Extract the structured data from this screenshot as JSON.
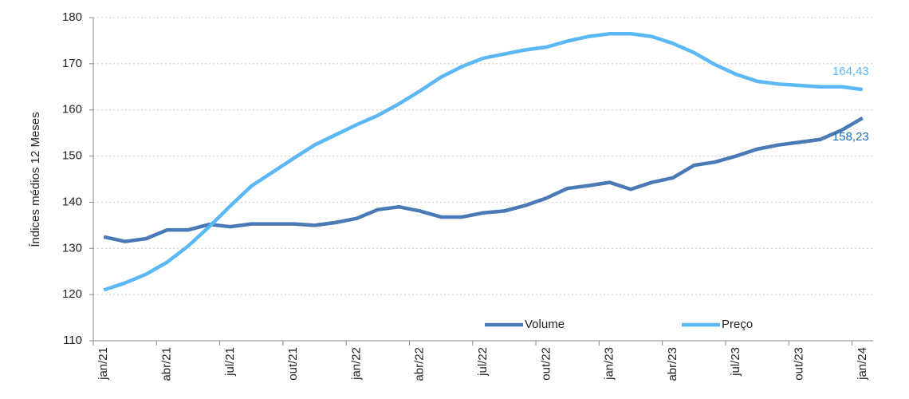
{
  "chart_data": {
    "type": "line",
    "y_label": "Índices médios 12 Meses",
    "categories": [
      "jan/21",
      null,
      null,
      "abr/21",
      null,
      null,
      "jul/21",
      null,
      null,
      "out/21",
      null,
      null,
      "jan/22",
      null,
      null,
      "abr/22",
      null,
      null,
      "jul/22",
      null,
      null,
      "out/22",
      null,
      null,
      "jan/23",
      null,
      null,
      "abr/23",
      null,
      null,
      "jul/23",
      null,
      null,
      "out/23",
      null,
      null,
      "jan/24"
    ],
    "series": [
      {
        "name": "Volume",
        "color": "#4a7ab5",
        "values": [
          132.5,
          131.5,
          132.1,
          134,
          134,
          135.2,
          134.7,
          135.3,
          135.3,
          135.3,
          135,
          135.6,
          136.5,
          138.4,
          139,
          138.1,
          136.8,
          136.8,
          137.7,
          138.1,
          139.3,
          140.9,
          143,
          143.6,
          144.3,
          142.8,
          144.3,
          145.3,
          148,
          148.7,
          150,
          151.5,
          152.4,
          153,
          153.6,
          155.6,
          158.23
        ],
        "value_labels": [
          null,
          null,
          null,
          null,
          null,
          null,
          null,
          null,
          null,
          null,
          null,
          null,
          null,
          null,
          null,
          null,
          null,
          null,
          null,
          null,
          null,
          null,
          null,
          null,
          null,
          null,
          null,
          null,
          null,
          null,
          null,
          null,
          null,
          null,
          null,
          null,
          "158,23"
        ],
        "label_color": "#1f6fb5"
      },
      {
        "name": "Preço",
        "color": "#5bb8f5",
        "values": [
          121,
          122.5,
          124.4,
          127,
          130.5,
          134.7,
          139.2,
          143.5,
          146.5,
          149.5,
          152.4,
          154.6,
          156.8,
          158.8,
          161.3,
          164.1,
          167.1,
          169.4,
          171.2,
          172.1,
          173,
          173.6,
          174.9,
          175.9,
          176.5,
          176.5,
          175.9,
          174.4,
          172.4,
          169.8,
          167.7,
          166.2,
          165.6,
          165.3,
          165,
          165,
          164.43
        ],
        "value_labels": [
          null,
          null,
          null,
          null,
          null,
          null,
          null,
          null,
          null,
          null,
          null,
          null,
          null,
          null,
          null,
          null,
          null,
          null,
          null,
          null,
          null,
          null,
          null,
          null,
          null,
          null,
          null,
          null,
          null,
          null,
          null,
          null,
          null,
          null,
          null,
          null,
          "164,43"
        ],
        "label_color": "#5bb8f5"
      }
    ],
    "ylim": [
      110,
      180
    ],
    "yticks": [
      110,
      120,
      130,
      140,
      150,
      160,
      170,
      180
    ],
    "grid": true,
    "legend": "lower right"
  }
}
